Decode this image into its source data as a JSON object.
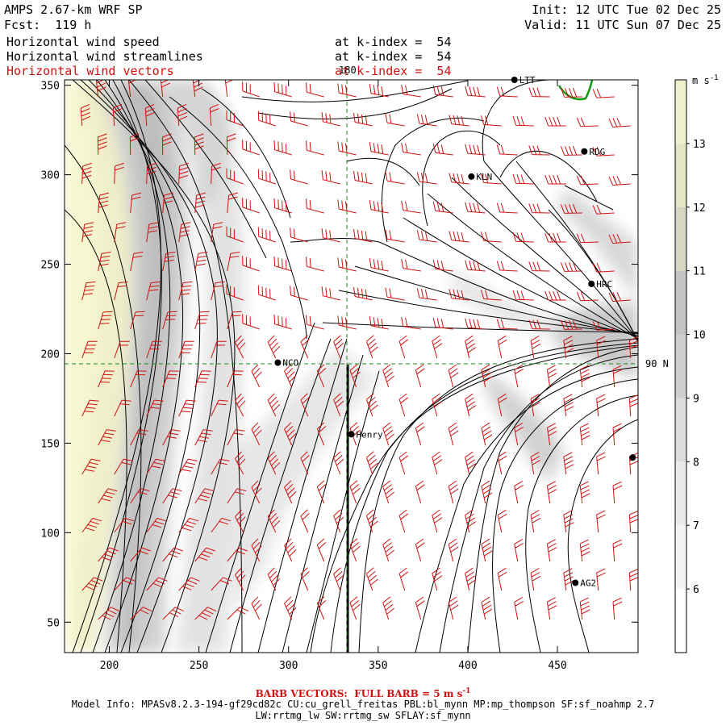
{
  "header": {
    "model_title": "AMPS 2.67-km WRF SP",
    "forecast": "Fcst:  119 h",
    "init": "Init: 12 UTC Tue 02 Dec 25",
    "valid": "Valid: 11 UTC Sun 07 Dec 25",
    "fields": [
      {
        "name": "Horizontal wind speed",
        "level": "at k-index =  54"
      },
      {
        "name": "Horizontal wind streamlines",
        "level": "at k-index =  54"
      },
      {
        "name": "Horizontal wind vectors",
        "level": "at k-index =  54"
      }
    ]
  },
  "map": {
    "x_ticks": [
      "200",
      "250",
      "300",
      "350",
      "400",
      "450"
    ],
    "y_ticks": [
      "50",
      "100",
      "150",
      "200",
      "250",
      "300",
      "350"
    ],
    "xlim": [
      175,
      495
    ],
    "ylim": [
      33,
      353
    ],
    "gridline_labels": {
      "meridian": "180",
      "parallel": "90 N"
    },
    "stations": [
      {
        "name": "LTT",
        "x": 426,
        "y": 353
      },
      {
        "name": "RDG",
        "x": 465,
        "y": 313
      },
      {
        "name": "KLN",
        "x": 402,
        "y": 299
      },
      {
        "name": "HRC",
        "x": 469,
        "y": 239
      },
      {
        "name": "NCO",
        "x": 294,
        "y": 195
      },
      {
        "name": "Henry",
        "x": 335,
        "y": 155
      },
      {
        "name": "",
        "x": 492,
        "y": 142
      },
      {
        "name": "AG2",
        "x": 460,
        "y": 72
      }
    ],
    "colors": {
      "barbs": "#d01010",
      "grid": "#1a8a1a",
      "coast": "#119911"
    }
  },
  "colorbar": {
    "unit": "m s",
    "unit_exp": "-1",
    "labels": [
      "6",
      "7",
      "8",
      "9",
      "10",
      "11",
      "12",
      "13"
    ],
    "levels": [
      5,
      6,
      7,
      8,
      9,
      10,
      11,
      12,
      13,
      14
    ],
    "colors": [
      "#ffffff",
      "#f4f4f4",
      "#e9e9e9",
      "#dcdcdc",
      "#cecece",
      "#c4c4c4",
      "#d6d6c2",
      "#e4e4c6",
      "#efefc9",
      "#f8f8d2"
    ]
  },
  "footer": {
    "barb_note": "BARB VECTORS:  FULL BARB = 5 m s",
    "barb_unit_exp": "-1",
    "model_info": "Model Info: MPASv8.2.3-194-gf29cd82c CU:cu_grell_freitas PBL:bl_mynn MP:mp_thompson SF:sf_noahmp 2.7",
    "model_info2": "LW:rrtmg_lw SW:rrtmg_sw SFLAY:sf_mynn"
  }
}
